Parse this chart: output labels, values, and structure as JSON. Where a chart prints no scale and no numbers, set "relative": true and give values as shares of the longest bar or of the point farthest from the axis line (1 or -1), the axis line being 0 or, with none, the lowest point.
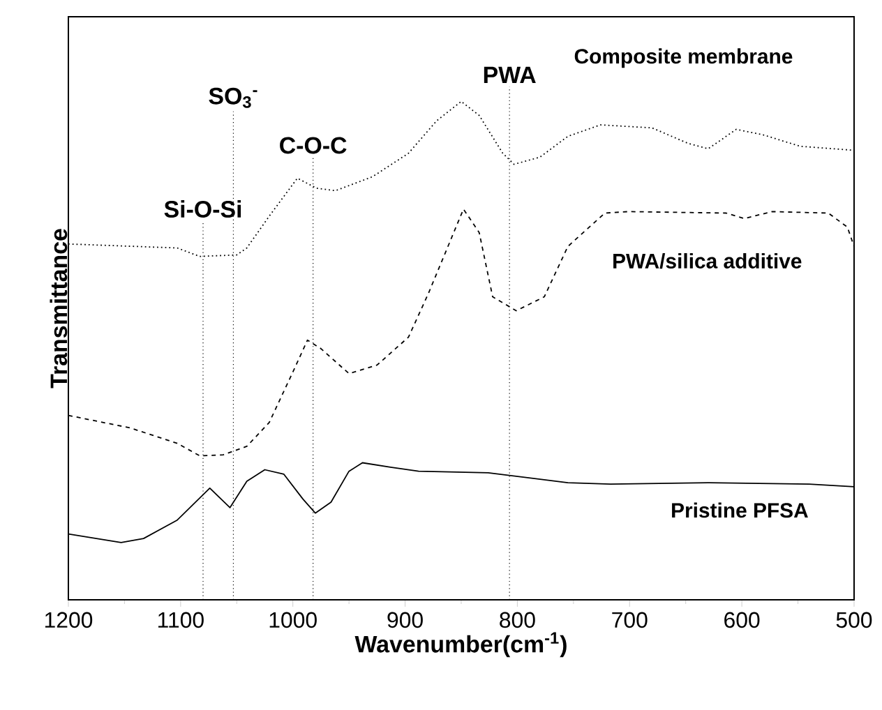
{
  "chart_data": {
    "type": "line",
    "relative": true,
    "xlabel": "Wavenumber(cm$^{-1}$)",
    "ylabel": "Transmittance",
    "xlim": [
      1200,
      500
    ],
    "xticks": [
      1200,
      1100,
      1000,
      900,
      800,
      700,
      600,
      500
    ],
    "grid": false,
    "legend": false,
    "marker": "none",
    "ref_lines": [
      {
        "axis": "x",
        "value": 1080,
        "label": "Si-O-Si",
        "line_style": "dotted",
        "color": "#000000"
      },
      {
        "axis": "x",
        "value": 1053,
        "label": "SO$_{3}$$^{-}$",
        "line_style": "dotted",
        "color": "#000000"
      },
      {
        "axis": "x",
        "value": 982,
        "label": "C-O-C",
        "line_style": "dotted",
        "color": "#000000"
      },
      {
        "axis": "x",
        "value": 807,
        "label": "PWA",
        "line_style": "dotted",
        "color": "#000000"
      }
    ],
    "series": [
      {
        "name": "Composite membrane",
        "color": "#000000",
        "line_style": "dotted",
        "x": [
          1200,
          1103,
          1083,
          1050,
          1041,
          1021,
          996,
          979,
          962,
          929,
          897,
          872,
          850,
          834,
          813,
          803,
          780,
          755,
          726,
          680,
          648,
          630,
          605,
          581,
          548,
          500
        ],
        "values": [
          0.714,
          0.706,
          0.689,
          0.692,
          0.706,
          0.77,
          0.846,
          0.826,
          0.821,
          0.849,
          0.896,
          0.961,
          1.0,
          0.972,
          0.896,
          0.874,
          0.888,
          0.93,
          0.953,
          0.947,
          0.916,
          0.905,
          0.944,
          0.933,
          0.91,
          0.902
        ]
      },
      {
        "name": "PWA/silica additive",
        "color": "#000000",
        "line_style": "dashed",
        "x": [
          1200,
          1145,
          1103,
          1083,
          1062,
          1041,
          1021,
          1000,
          987,
          975,
          950,
          925,
          897,
          879,
          867,
          848,
          834,
          822,
          801,
          776,
          755,
          722,
          701,
          614,
          598,
          573,
          523,
          506,
          500
        ],
        "values": [
          0.37,
          0.345,
          0.314,
          0.289,
          0.291,
          0.308,
          0.356,
          0.457,
          0.521,
          0.504,
          0.454,
          0.471,
          0.527,
          0.616,
          0.681,
          0.784,
          0.737,
          0.608,
          0.58,
          0.608,
          0.709,
          0.776,
          0.779,
          0.776,
          0.765,
          0.779,
          0.776,
          0.748,
          0.709
        ]
      },
      {
        "name": "Pristine PFSA",
        "color": "#000000",
        "line_style": "solid",
        "x": [
          1200,
          1153,
          1133,
          1103,
          1074,
          1056,
          1041,
          1025,
          1008,
          991,
          980,
          966,
          950,
          938,
          913,
          888,
          826,
          755,
          717,
          630,
          540,
          500
        ],
        "values": [
          0.132,
          0.115,
          0.123,
          0.16,
          0.224,
          0.185,
          0.238,
          0.261,
          0.252,
          0.202,
          0.174,
          0.196,
          0.258,
          0.275,
          0.266,
          0.258,
          0.255,
          0.235,
          0.232,
          0.235,
          0.232,
          0.227
        ]
      }
    ]
  }
}
